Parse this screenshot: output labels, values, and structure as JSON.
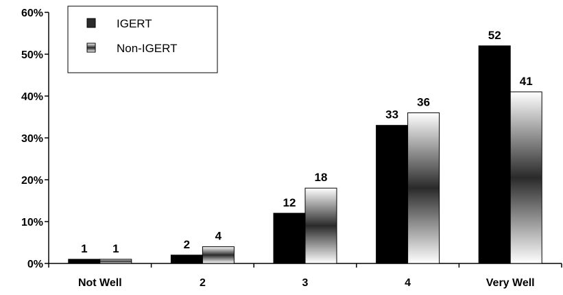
{
  "chart_data": {
    "type": "bar",
    "title": "",
    "xlabel": "",
    "ylabel": "",
    "categories": [
      "Not Well",
      "2",
      "3",
      "4",
      "Very Well"
    ],
    "series": [
      {
        "name": "IGERT",
        "values": [
          1,
          2,
          12,
          33,
          52
        ]
      },
      {
        "name": "Non-IGERT",
        "values": [
          1,
          4,
          18,
          36,
          41
        ]
      }
    ],
    "ylim": [
      0,
      60
    ],
    "yticks": [
      "0%",
      "10%",
      "20%",
      "30%",
      "40%",
      "50%",
      "60%"
    ],
    "grid": false,
    "legend_position": "top-left",
    "data_labels": true
  },
  "colors": {
    "igert": "#000000",
    "non_igert_gradient": [
      "#ffffff",
      "#2a2a2a",
      "#ffffff"
    ],
    "axis": "#000000"
  }
}
